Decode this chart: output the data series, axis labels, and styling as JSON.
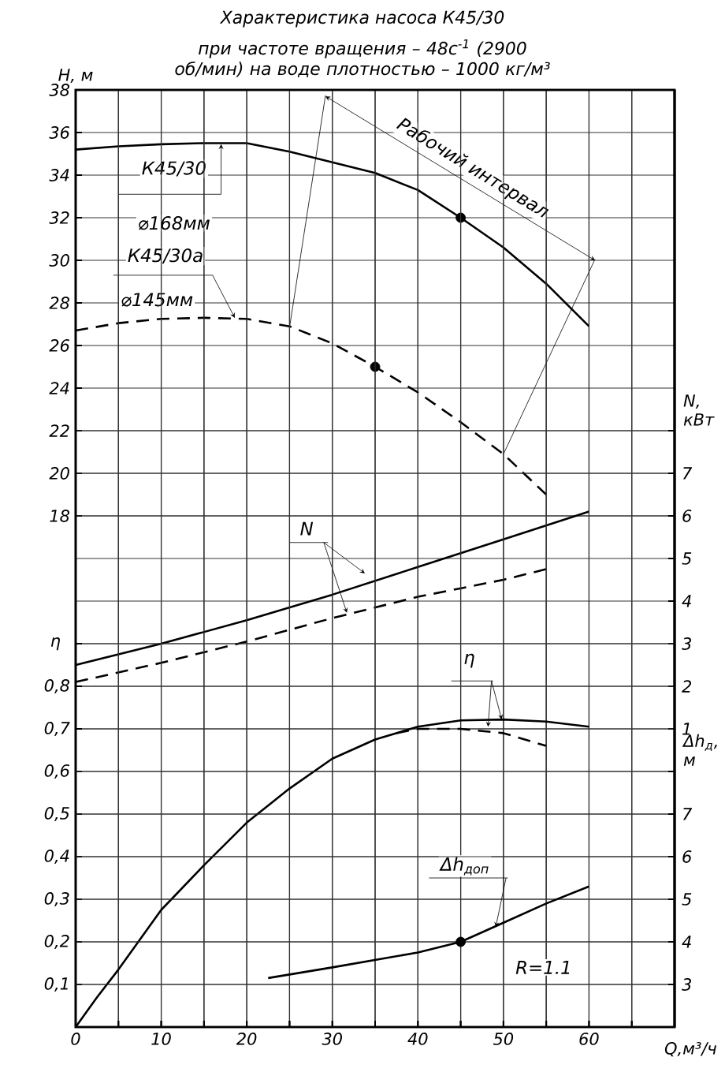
{
  "chart_data": [
    {
      "type": "line",
      "title": "Характеристика насоса К45/30",
      "subtitle": "при частоте вращения – 48с$^{-1}$ (2900 об/мин) на воде плотностью – 1000 кг/м³",
      "annotations": [
        {
          "text": "⌀168мм",
          "x": 17,
          "y": 35.45
        },
        {
          "text": "⌀145мм",
          "x": 18.6,
          "y": 27.3
        },
        "Рабочий интервал",
        {
          "text": "N",
          "x": 33.8,
          "y": 15.3
        }
      ],
      "ylabel": "H, м",
      "y2label": "N, кВт",
      "xlim": [
        0,
        70
      ],
      "xticks": [
        0,
        {
          "value": 5,
          "label": null
        },
        10,
        {
          "value": 15,
          "label": null
        },
        20,
        {
          "value": 25,
          "label": null
        },
        30,
        {
          "value": 35,
          "label": null
        },
        40,
        {
          "value": 45,
          "label": null
        },
        50,
        {
          "value": 55,
          "label": null
        },
        60,
        {
          "value": 65,
          "label": null
        }
      ],
      "ylim": [
        -6,
        38
      ],
      "yticks": [
        18,
        20,
        22,
        24,
        26,
        28,
        30,
        32,
        34,
        36,
        38
      ],
      "y2lim": [
        -6,
        16
      ],
      "y2ticks": [
        1,
        2,
        3,
        4,
        5,
        6,
        7,
        {
          "value": 8,
          "label": null
        }
      ],
      "tick_labels": "y",
      "grid": true,
      "marker": "none",
      "series": [
        {
          "name": "К45/30",
          "color": "#000000",
          "line_style": "solid",
          "x": [
            0,
            5,
            10,
            15,
            20,
            25,
            30,
            35,
            40,
            45,
            50,
            55,
            60
          ],
          "values": [
            35.2,
            35.35,
            35.45,
            35.5,
            35.5,
            35.1,
            34.6,
            34.1,
            33.3,
            32,
            30.6,
            28.9,
            26.9
          ]
        },
        {
          "name": "К45/30а",
          "color": "#000000",
          "line_style": "dashed",
          "x": [
            0,
            5,
            10,
            15,
            20,
            25,
            30,
            35,
            40,
            45,
            50,
            55
          ],
          "values": [
            26.7,
            27.05,
            27.25,
            27.3,
            27.25,
            26.9,
            26.1,
            25,
            23.8,
            22.4,
            20.9,
            19.0
          ]
        },
        {
          "color": "#000000",
          "line_style": "solid",
          "axis": "y2",
          "x": [
            0,
            10,
            20,
            30,
            40,
            50,
            60
          ],
          "values": [
            2.5,
            3.0,
            3.55,
            4.15,
            4.8,
            5.45,
            6.1
          ]
        },
        {
          "color": "#000000",
          "line_style": "dashed",
          "axis": "y2",
          "x": [
            0,
            10,
            20,
            30,
            40,
            50,
            55
          ],
          "values": [
            2.1,
            2.55,
            3.05,
            3.6,
            4.1,
            4.5,
            4.75
          ]
        },
        {
          "type": "scatter",
          "marker": "circle",
          "color": "#000000",
          "x": [
            45,
            35
          ],
          "values": [
            32,
            25
          ]
        }
      ]
    },
    {
      "type": "line",
      "annotations": [
        {
          "text": "η",
          "x": 49.8,
          "y": 0.722
        },
        {
          "text": "Δh$_{доп}$",
          "x": 49.1,
          "y": 0.235
        },
        "R=1.1"
      ],
      "xlabel": "Q,м³/ч",
      "ylabel": "η",
      "y2label": "Δh$_{д}$, м",
      "xlim": [
        0,
        70
      ],
      "xticks": [
        0,
        {
          "value": 5,
          "label": null
        },
        10,
        {
          "value": 15,
          "label": null
        },
        20,
        {
          "value": 25,
          "label": null
        },
        30,
        {
          "value": 35,
          "label": null
        },
        40,
        {
          "value": 45,
          "label": null
        },
        50,
        {
          "value": 55,
          "label": null
        },
        60,
        {
          "value": 65,
          "label": null
        }
      ],
      "ylim": [
        0,
        2.2
      ],
      "yticks": [
        {
          "value": 0.1,
          "label": "0,1"
        },
        {
          "value": 0.2,
          "label": "0,2"
        },
        {
          "value": 0.3,
          "label": "0,3"
        },
        {
          "value": 0.4,
          "label": "0,4"
        },
        {
          "value": 0.5,
          "label": "0,5"
        },
        {
          "value": 0.6,
          "label": "0,6"
        },
        {
          "value": 0.7,
          "label": "0,7"
        },
        {
          "value": 0.8,
          "label": "0,8"
        },
        {
          "value": 0.9,
          "label": null
        }
      ],
      "y2lim": [
        2,
        24
      ],
      "y2ticks": [
        3,
        4,
        5,
        6,
        7,
        {
          "value": 8,
          "label": null
        }
      ],
      "grid": true,
      "marker": "none",
      "series": [
        {
          "color": "#000000",
          "line_style": "solid",
          "x": [
            0,
            2.5,
            5,
            10,
            15,
            20,
            25,
            30,
            35,
            40,
            45,
            50,
            55,
            60
          ],
          "values": [
            0,
            0.07,
            0.135,
            0.275,
            0.38,
            0.48,
            0.56,
            0.63,
            0.675,
            0.705,
            0.72,
            0.722,
            0.717,
            0.705
          ]
        },
        {
          "color": "#000000",
          "line_style": "dashed",
          "x": [
            37.5,
            40,
            45,
            50,
            55
          ],
          "values": [
            0.69,
            0.7,
            0.7,
            0.69,
            0.66
          ]
        },
        {
          "color": "#000000",
          "line_style": "solid",
          "axis": "y2",
          "x": [
            22.5,
            30,
            40,
            45,
            50,
            55,
            60
          ],
          "values": [
            3.15,
            3.4,
            3.75,
            4.0,
            4.45,
            4.9,
            5.3
          ]
        },
        {
          "type": "scatter",
          "marker": "circle",
          "color": "#000000",
          "axis": "y2",
          "x": [
            45
          ],
          "values": [
            4.0
          ]
        }
      ]
    }
  ]
}
